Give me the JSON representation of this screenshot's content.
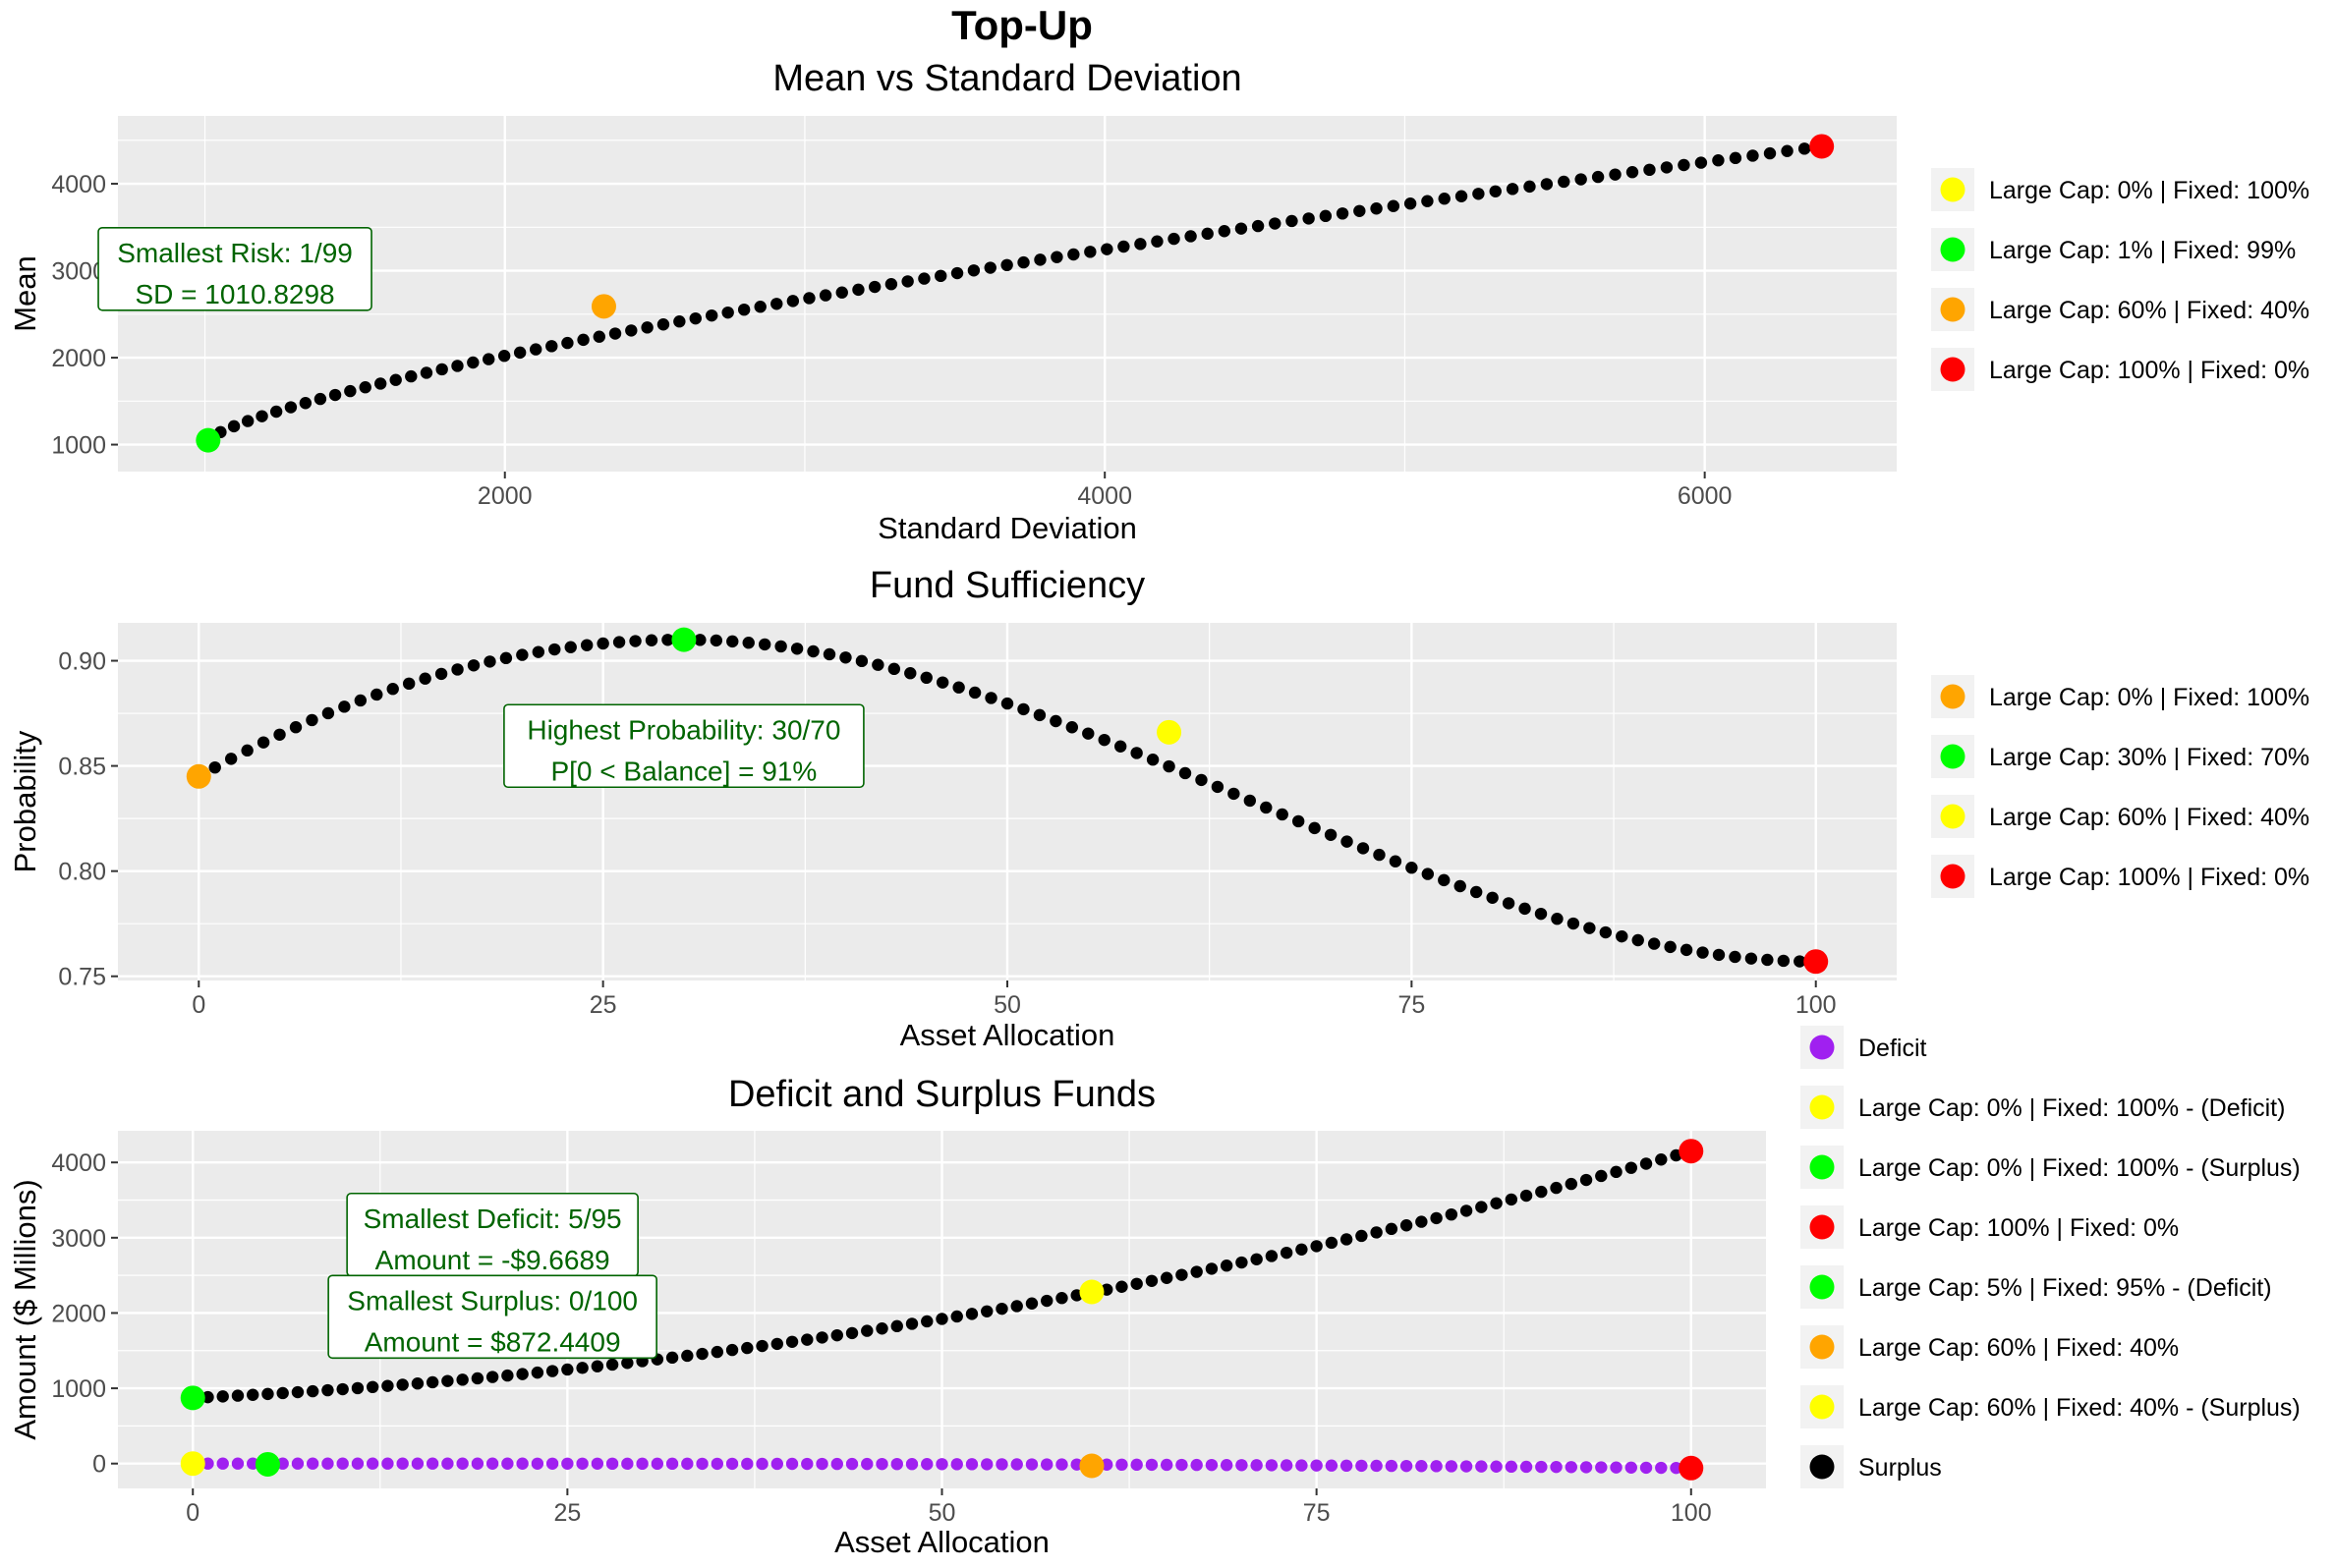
{
  "figure_title": "Top-Up",
  "chart_data": [
    {
      "type": "scatter",
      "title": "Mean vs Standard Deviation",
      "xlabel": "Standard Deviation",
      "ylabel": "Mean",
      "xlim": [
        710,
        6640
      ],
      "ylim": [
        690,
        4780
      ],
      "xticks": [
        2000,
        4000,
        6000
      ],
      "xtick_labels": [
        "2000",
        "4000",
        "6000"
      ],
      "yticks": [
        1000,
        2000,
        3000,
        4000
      ],
      "ytick_labels": [
        "1000",
        "2000",
        "3000",
        "4000"
      ],
      "curve": {
        "kind": "frontier",
        "allocation_range": [
          1,
          100
        ],
        "sd_range": [
          1010.8298,
          6390
        ],
        "mean_range": [
          1050,
          4430
        ],
        "sd_exponent": 1.06,
        "mean_exponent": 0.78,
        "point_color": "#000000"
      },
      "highlights": [
        {
          "label": "Large Cap: 1% | Fixed: 99%",
          "x": 1010.83,
          "y": 1050,
          "color": "#00FF00"
        },
        {
          "label": "Large Cap: 60% | Fixed: 40%",
          "x": 2330,
          "y": 2590,
          "color": "#FFA500"
        },
        {
          "label": "Large Cap: 100% | Fixed: 0%",
          "x": 6390,
          "y": 4430,
          "color": "#FF0000"
        }
      ],
      "legend": [
        {
          "label": "Large Cap: 0% | Fixed: 100%",
          "color": "#FFFF00"
        },
        {
          "label": "Large Cap: 1% | Fixed: 99%",
          "color": "#00FF00"
        },
        {
          "label": "Large Cap: 60% | Fixed: 40%",
          "color": "#FFA500"
        },
        {
          "label": "Large Cap: 100% | Fixed: 0%",
          "color": "#FF0000"
        }
      ],
      "legend_position": "right",
      "annotations": [
        {
          "lines": [
            "Smallest Risk: 1/99",
            "SD = 1010.8298"
          ],
          "x": 1100,
          "y": 3020
        }
      ],
      "grid": true
    },
    {
      "type": "scatter",
      "title": "Fund Sufficiency",
      "xlabel": "Asset Allocation",
      "ylabel": "Probability",
      "xlim": [
        -5,
        105
      ],
      "ylim": [
        0.748,
        0.918
      ],
      "xticks": [
        0,
        25,
        50,
        75,
        100
      ],
      "xtick_labels": [
        "0",
        "25",
        "50",
        "75",
        "100"
      ],
      "yticks": [
        0.75,
        0.8,
        0.85,
        0.9
      ],
      "ytick_labels": [
        "0.75",
        "0.80",
        "0.85",
        "0.90"
      ],
      "curve": {
        "kind": "probability",
        "x_range": [
          0,
          100
        ],
        "y_at_0": 0.845,
        "y_peak": 0.91,
        "x_peak": 30,
        "y_at_100": 0.757,
        "point_color": "#000000"
      },
      "highlights": [
        {
          "label": "Large Cap: 0% | Fixed: 100%",
          "x": 0,
          "y": 0.845,
          "color": "#FFA500"
        },
        {
          "label": "Large Cap: 30% | Fixed: 70%",
          "x": 30,
          "y": 0.91,
          "color": "#00FF00"
        },
        {
          "label": "Large Cap: 60% | Fixed: 40%",
          "x": 60,
          "y": 0.866,
          "color": "#FFFF00"
        },
        {
          "label": "Large Cap: 100% | Fixed: 0%",
          "x": 100,
          "y": 0.757,
          "color": "#FF0000"
        }
      ],
      "legend": [
        {
          "label": "Large Cap: 0% | Fixed: 100%",
          "color": "#FFA500"
        },
        {
          "label": "Large Cap: 30% | Fixed: 70%",
          "color": "#00FF00"
        },
        {
          "label": "Large Cap: 60% | Fixed: 40%",
          "color": "#FFFF00"
        },
        {
          "label": "Large Cap: 100% | Fixed: 0%",
          "color": "#FF0000"
        }
      ],
      "legend_position": "right",
      "annotations": [
        {
          "lines": [
            "Highest Probability: 30/70",
            "P[0 < Balance] = 91%"
          ],
          "x": 30,
          "y": 0.8595
        }
      ],
      "grid": true
    },
    {
      "type": "scatter",
      "title": "Deficit and Surplus Funds",
      "xlabel": "Asset Allocation",
      "ylabel": "Amount ($ Millions)",
      "xlim": [
        -5,
        105
      ],
      "ylim": [
        -330,
        4420
      ],
      "xticks": [
        0,
        25,
        50,
        75,
        100
      ],
      "xtick_labels": [
        "0",
        "25",
        "50",
        "75",
        "100"
      ],
      "yticks": [
        0,
        1000,
        2000,
        3000,
        4000
      ],
      "ytick_labels": [
        "0",
        "1000",
        "2000",
        "3000",
        "4000"
      ],
      "series": [
        {
          "name": "Surplus",
          "kind": "surplus",
          "x_range": [
            0,
            100
          ],
          "y_start": 872.4409,
          "y_end": 4150,
          "color": "#000000"
        },
        {
          "name": "Deficit",
          "kind": "deficit",
          "x_range": [
            0,
            100
          ],
          "y_start": 0,
          "y_end": -60,
          "color": "#A020F0"
        }
      ],
      "highlights": [
        {
          "label": "Large Cap: 0% | Fixed: 100% - (Surplus)",
          "x": 0,
          "y": 872.44,
          "color": "#00FF00"
        },
        {
          "label": "Large Cap: 0% | Fixed: 100% - (Deficit)",
          "x": 0,
          "y": 0,
          "color": "#FFFF00"
        },
        {
          "label": "Large Cap: 5% | Fixed: 95% - (Deficit)",
          "x": 5,
          "y": -9.6689,
          "color": "#00FF00"
        },
        {
          "label": "Large Cap: 60% | Fixed: 40% - (Surplus)",
          "x": 60,
          "y": 2280,
          "color": "#FFFF00"
        },
        {
          "label": "Large Cap: 60% | Fixed: 40%",
          "x": 60,
          "y": -30,
          "color": "#FFA500"
        },
        {
          "label": "Large Cap: 100% | Fixed: 0%",
          "x": 100,
          "y": 4150,
          "color": "#FF0000"
        },
        {
          "label": "Large Cap: 100% | Fixed: 0%",
          "x": 100,
          "y": -60,
          "color": "#FF0000"
        }
      ],
      "legend": [
        {
          "label": "Deficit",
          "color": "#A020F0"
        },
        {
          "label": "Large Cap: 0% | Fixed: 100% - (Deficit)",
          "color": "#FFFF00"
        },
        {
          "label": "Large Cap: 0% | Fixed: 100% - (Surplus)",
          "color": "#00FF00"
        },
        {
          "label": "Large Cap: 100% | Fixed: 0%",
          "color": "#FF0000"
        },
        {
          "label": "Large Cap: 5% | Fixed: 95% - (Deficit)",
          "color": "#00FF00"
        },
        {
          "label": "Large Cap: 60% | Fixed: 40%",
          "color": "#FFA500"
        },
        {
          "label": "Large Cap: 60% | Fixed: 40% - (Surplus)",
          "color": "#FFFF00"
        },
        {
          "label": "Surplus",
          "color": "#000000"
        }
      ],
      "legend_position": "right",
      "annotations": [
        {
          "lines": [
            "Smallest Deficit: 5/95",
            "Amount = -$9.6689"
          ],
          "x": 20,
          "y": 3040
        },
        {
          "lines": [
            "Smallest Surplus: 0/100",
            "Amount = $872.4409"
          ],
          "x": 20,
          "y": 1950
        }
      ],
      "grid": true
    }
  ]
}
